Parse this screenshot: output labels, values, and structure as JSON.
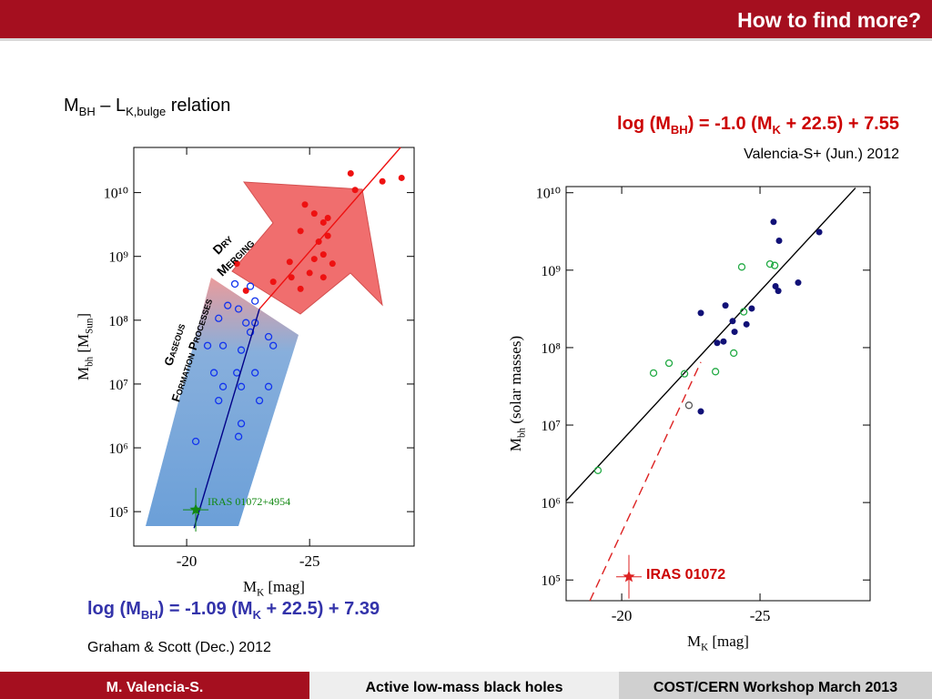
{
  "slide": {
    "header": "How to find more?",
    "left_title": [
      "M",
      "BH",
      " – L",
      "K,bulge",
      " relation"
    ],
    "left_formula": [
      "log (M",
      "BH",
      ") = -1.09 (M",
      "K",
      " + 22.5) + 7.39"
    ],
    "left_citation": "Graham & Scott (Dec.) 2012",
    "right_formula": [
      "log (M",
      "BH",
      ") = -1.0 (M",
      "K",
      " + 22.5) + 7.55"
    ],
    "right_citation": "Valencia-S+ (Jun.) 2012",
    "footer": [
      "M. Valencia-S.",
      "Active low-mass black holes",
      "COST/CERN Workshop March 2013"
    ]
  },
  "chart_data": [
    {
      "type": "scatter",
      "xlabel": [
        "M",
        "K",
        " [mag]"
      ],
      "ylabel": [
        "M",
        "bh",
        " [M",
        "Sun",
        "]"
      ],
      "xlim": [
        -17.85,
        -29.25
      ],
      "ylim": [
        28840,
        51000000000.0
      ],
      "yscale": "log",
      "xticks": [
        -20,
        -25
      ],
      "yticks": [
        {
          "value": 100000.0,
          "label": "10⁵"
        },
        {
          "value": 1000000.0,
          "label": "10⁶"
        },
        {
          "value": 10000000.0,
          "label": "10⁷"
        },
        {
          "value": 100000000.0,
          "label": "10⁸"
        },
        {
          "value": 1000000000.0,
          "label": "10⁹"
        },
        {
          "value": 10000000000.0,
          "label": "10¹⁰"
        }
      ],
      "annotations": [
        {
          "text": [
            "Dry",
            "Merging"
          ]
        },
        {
          "text": [
            "Gaseous",
            "Formation Processes"
          ]
        },
        {
          "text": [
            "IRAS 01072+4954"
          ]
        }
      ],
      "series": [
        {
          "mode": "points",
          "marker": "filled-circle",
          "color": "#ee1111",
          "x": [
            -26.67,
            -28.74,
            -27.96,
            -26.85,
            -24.81,
            -25.19,
            -25.74,
            -25.56,
            -24.63,
            -25.74,
            -25.37,
            -25.56,
            -25.19,
            -25.93,
            -24.19,
            -25.0,
            -24.26,
            -25.56,
            -22.04,
            -23.52,
            -24.63,
            -22.41
          ],
          "values": [
            20000000000.0,
            17000000000.0,
            15000000000.0,
            11000000000.0,
            6500000000.0,
            4700000000.0,
            4000000000.0,
            3400000000.0,
            2500000000.0,
            2100000000.0,
            1700000000.0,
            1070000000.0,
            910000000.0,
            770000000.0,
            820000000.0,
            550000000.0,
            470000000.0,
            470000000.0,
            770000000.0,
            400000000.0,
            310000000.0,
            290000000.0
          ]
        },
        {
          "mode": "points",
          "marker": "open-circle",
          "color": "#1133ee",
          "x": [
            -21.96,
            -22.59,
            -22.78,
            -21.67,
            -22.11,
            -22.41,
            -21.3,
            -22.78,
            -20.85,
            -21.48,
            -22.59,
            -23.33,
            -22.22,
            -23.52,
            -21.11,
            -22.04,
            -22.78,
            -21.48,
            -22.22,
            -23.33,
            -21.3,
            -22.96,
            -22.22,
            -20.37,
            -22.11
          ],
          "values": [
            370000000.0,
            340000000.0,
            200000000.0,
            170000000.0,
            150000000.0,
            91000000.0,
            107000000.0,
            91000000.0,
            40000000.0,
            40000000.0,
            65000000.0,
            55000000.0,
            34000000.0,
            40000000.0,
            15000000.0,
            15000000.0,
            15000000.0,
            9100000.0,
            9100000.0,
            9100000.0,
            5500000.0,
            5500000.0,
            2400000.0,
            1260000.0,
            1500000.0
          ]
        },
        {
          "mode": "line",
          "color": "#ee1111",
          "x": [
            -22.96,
            -28.7
          ],
          "values": [
            150000000.0,
            51000000000.0
          ]
        },
        {
          "mode": "line",
          "color": "#000088",
          "x": [
            -20.3,
            -22.96
          ],
          "values": [
            55000.0,
            150000000.0
          ]
        },
        {
          "mode": "points",
          "marker": "star",
          "color": "#118811",
          "x": [
            -20.37
          ],
          "values": [
            107000.0
          ]
        }
      ]
    },
    {
      "type": "scatter",
      "xlabel": [
        "M",
        "K",
        " [mag]"
      ],
      "ylabel": [
        "M",
        "bh",
        " (solar masses)"
      ],
      "xlim": [
        -17.99,
        -28.98
      ],
      "ylim": [
        54000.0,
        12000000000.0
      ],
      "yscale": "log",
      "xticks": [
        -20,
        -25
      ],
      "yticks": [
        {
          "value": 100000.0,
          "label": "10⁵"
        },
        {
          "value": 1000000.0,
          "label": "10⁶"
        },
        {
          "value": 10000000.0,
          "label": "10⁷"
        },
        {
          "value": 100000000.0,
          "label": "10⁸"
        },
        {
          "value": 1000000000.0,
          "label": "10⁹"
        },
        {
          "value": 10000000000.0,
          "label": "10¹⁰"
        }
      ],
      "annotations": [
        {
          "text": [
            "IRAS 01072"
          ]
        }
      ],
      "series": [
        {
          "mode": "line",
          "color": "#000000",
          "x": [
            -17.99,
            -28.45
          ],
          "values": [
            1050000.0,
            11500000000.0
          ]
        },
        {
          "mode": "line",
          "dash": true,
          "color": "#dd2222",
          "x": [
            -18.85,
            -22.86
          ],
          "values": [
            54000.0,
            65000000.0
          ]
        },
        {
          "mode": "points",
          "marker": "filled-circle",
          "color": "#111177",
          "x": [
            -25.49,
            -25.69,
            -27.14,
            -26.38,
            -25.56,
            -25.66,
            -24.7,
            -22.86,
            -23.75,
            -24.01,
            -24.51,
            -24.08,
            -23.68,
            -23.45,
            -22.86
          ],
          "values": [
            4200000000.0,
            2400000000.0,
            3100000000.0,
            690000000.0,
            620000000.0,
            540000000.0,
            320000000.0,
            280000000.0,
            350000000.0,
            220000000.0,
            200000000.0,
            160000000.0,
            120000000.0,
            115000000.0,
            15000000.0
          ]
        },
        {
          "mode": "points",
          "marker": "open-circle",
          "color": "#22aa44",
          "x": [
            -24.34,
            -25.36,
            -25.53,
            -24.41,
            -24.05,
            -21.71,
            -21.15,
            -22.27,
            -23.39,
            -19.14
          ],
          "values": [
            1100000000.0,
            1200000000.0,
            1150000000.0,
            290000000.0,
            85000000.0,
            63000000.0,
            47000000.0,
            46000000.0,
            49000000.0,
            2600000.0
          ]
        },
        {
          "mode": "points",
          "marker": "open-circle",
          "color": "#555555",
          "x": [
            -22.43
          ],
          "values": [
            18000000.0
          ]
        },
        {
          "mode": "points",
          "marker": "star",
          "color": "#dd2222",
          "x": [
            -20.26
          ],
          "values": [
            110000.0
          ]
        }
      ]
    }
  ]
}
